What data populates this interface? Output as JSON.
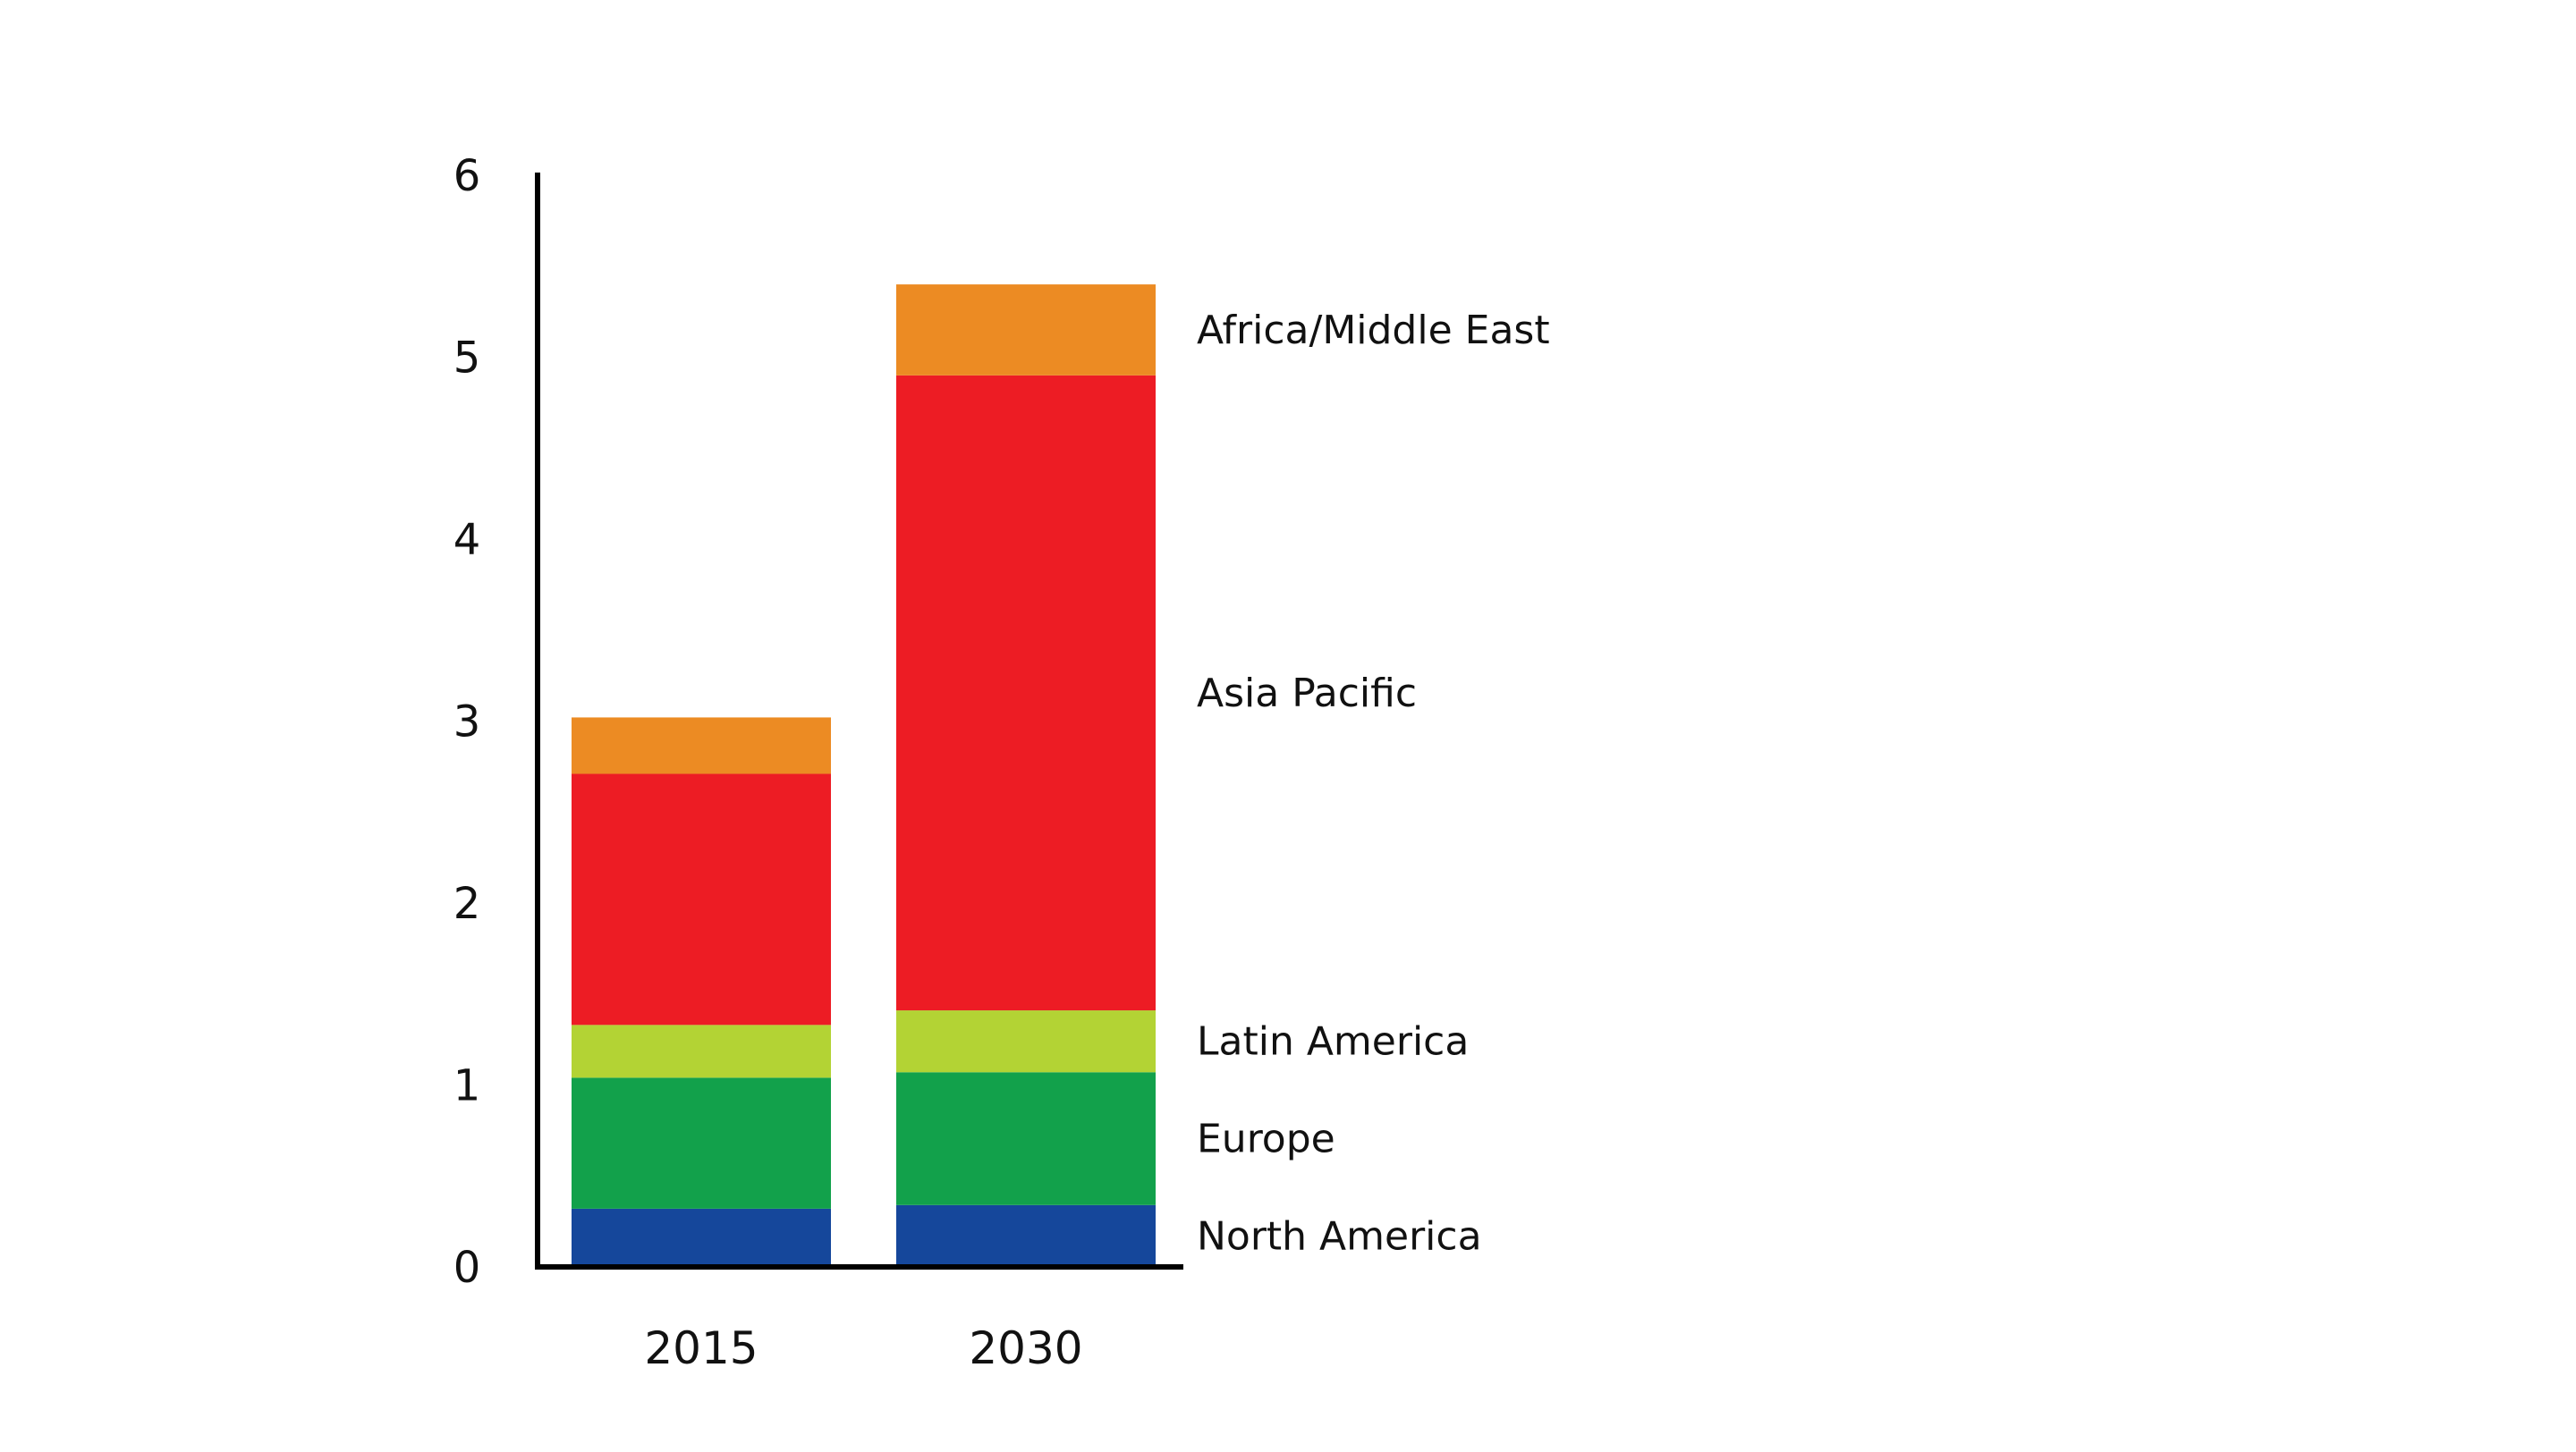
{
  "chart_data": {
    "type": "bar",
    "stacked": true,
    "title": "",
    "xlabel": "",
    "ylabel": "",
    "ylim": [
      0,
      6
    ],
    "yticks": [
      "0",
      "1",
      "2",
      "3",
      "4",
      "5",
      "6"
    ],
    "grid": false,
    "legend": "direct-labels-right",
    "categories": [
      "2015",
      "2030"
    ],
    "series": [
      {
        "name": "North America",
        "color": "#15479b",
        "values": [
          0.32,
          0.34
        ]
      },
      {
        "name": "Europe",
        "color": "#12a14b",
        "values": [
          0.72,
          0.73
        ]
      },
      {
        "name": "Latin America",
        "color": "#b3d334",
        "values": [
          0.29,
          0.34
        ]
      },
      {
        "name": "Asia Pacific",
        "color": "#ed1c24",
        "values": [
          1.38,
          3.49
        ]
      },
      {
        "name": "Africa/Middle East",
        "color": "#ec8b23",
        "values": [
          0.31,
          0.5
        ]
      }
    ]
  }
}
